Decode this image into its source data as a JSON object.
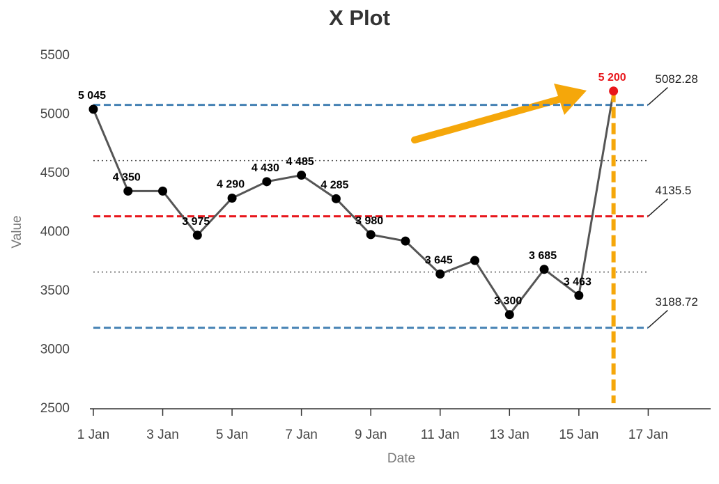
{
  "chart_data": {
    "type": "line",
    "title": "X Plot",
    "xlabel": "Date",
    "ylabel": "Value",
    "x": [
      1,
      2,
      3,
      4,
      5,
      6,
      7,
      8,
      9,
      10,
      11,
      12,
      13,
      14,
      15,
      16
    ],
    "series": [
      {
        "color": "#555555",
        "point_colors": [
          "#000000",
          "#000000",
          "#000000",
          "#000000",
          "#000000",
          "#000000",
          "#000000",
          "#000000",
          "#000000",
          "#000000",
          "#000000",
          "#000000",
          "#000000",
          "#000000",
          "#000000",
          "#e8161b"
        ],
        "values": [
          5045,
          4350,
          4350,
          3975,
          4290,
          4430,
          4485,
          4285,
          3980,
          3925,
          3645,
          3760,
          3300,
          3685,
          3463,
          5200
        ],
        "value_labels": [
          "5 045",
          "4 350",
          null,
          "3 975",
          "4 290",
          "4 430",
          "4 485",
          "4 285",
          "3 980",
          null,
          "3 645",
          null,
          "3 300",
          "3 685",
          "3 463",
          "5 200"
        ]
      }
    ],
    "limit_lines": [
      {
        "value": 5082.28,
        "color": "#4682b4",
        "style": "dashed",
        "labeled": true
      },
      {
        "value": 4608.89,
        "color": "#555555",
        "style": "dotted",
        "labeled": false
      },
      {
        "value": 4135.5,
        "color": "#e8161b",
        "style": "dashed",
        "labeled": true
      },
      {
        "value": 3662.11,
        "color": "#555555",
        "style": "dotted",
        "labeled": false
      },
      {
        "value": 3188.72,
        "color": "#4682b4",
        "style": "dashed",
        "labeled": true
      }
    ],
    "xlim": [
      0.9,
      18.8
    ],
    "xticks": [
      {
        "value": 1,
        "label": "1 Jan"
      },
      {
        "value": 3,
        "label": "3 Jan"
      },
      {
        "value": 5,
        "label": "5 Jan"
      },
      {
        "value": 7,
        "label": "7 Jan"
      },
      {
        "value": 9,
        "label": "9 Jan"
      },
      {
        "value": 11,
        "label": "11 Jan"
      },
      {
        "value": 13,
        "label": "13 Jan"
      },
      {
        "value": 15,
        "label": "15 Jan"
      },
      {
        "value": 17,
        "label": "17 Jan"
      }
    ],
    "ylim": [
      2500,
      5500
    ],
    "yticks": [
      2500,
      3000,
      3500,
      4000,
      4500,
      5000,
      5500
    ],
    "grid": false
  }
}
